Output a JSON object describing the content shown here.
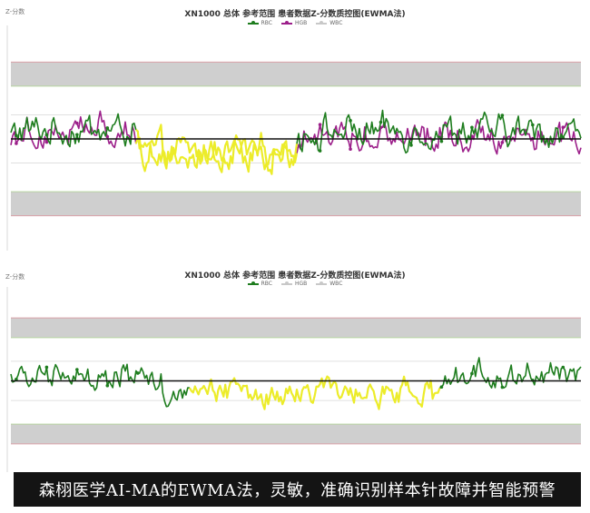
{
  "caption": "森栩医学AI-MA的EWMA法，灵敏，准确识别样本针故障并智能预警",
  "colors": {
    "RBC": "#1e7d1e",
    "HGB": "#9c1f8a",
    "WBC": "#c8c8c8",
    "inactive": "#c8c8c8",
    "highlight": "#ecec2a",
    "band": "#cfcfcf",
    "band_border": "#b8d4a0",
    "limit_line": "#d9a0a8",
    "center_line": "#111111"
  },
  "chart_data": [
    {
      "type": "line",
      "title": "XN1000 总体  参考范围 患者数据Z-分数质控图(EWMA法)",
      "ylabel": "Z-分数",
      "ylim": [
        -4.5,
        4.5
      ],
      "control_bands": [
        [
          2.2,
          3.2
        ],
        [
          -3.2,
          -2.2
        ]
      ],
      "reference_lines": [
        1.0,
        -1.0
      ],
      "center_line": 0,
      "legend": [
        "RBC",
        "HGB",
        "WBC"
      ],
      "legend_active": [
        true,
        true,
        false
      ],
      "n_points": 320,
      "segments": [
        {
          "from": 0,
          "to": 70,
          "state": "normal",
          "mean": 0.35
        },
        {
          "from": 70,
          "to": 145,
          "state": "needle-fault",
          "mean": -0.55
        },
        {
          "from": 145,
          "to": 160,
          "state": "fault-highlight",
          "mean": -0.5
        },
        {
          "from": 160,
          "to": 320,
          "state": "normal",
          "mean": 0.3
        }
      ],
      "series": [
        {
          "name": "RBC",
          "fault_mean": -0.55,
          "recovered_mean": 0.3
        },
        {
          "name": "HGB",
          "fault_mean": -0.55,
          "recovered_mean": 0.2
        }
      ]
    },
    {
      "type": "line",
      "title": "XN1000 总体  参考范围 患者数据Z-分数质控图(EWMA法)",
      "ylabel": "Z-分数",
      "ylim": [
        -4.5,
        4.5
      ],
      "control_bands": [
        [
          2.2,
          3.2
        ],
        [
          -3.2,
          -2.2
        ]
      ],
      "reference_lines": [
        1.0,
        -1.0
      ],
      "center_line": 0,
      "legend": [
        "RBC",
        "HGB",
        "WBC"
      ],
      "legend_active": [
        true,
        false,
        false
      ],
      "n_points": 320,
      "segments": [
        {
          "from": 0,
          "to": 85,
          "state": "normal",
          "mean": 0.25
        },
        {
          "from": 85,
          "to": 100,
          "state": "needle-fault",
          "mean": -0.6
        },
        {
          "from": 100,
          "to": 240,
          "state": "fault-highlight",
          "mean": -0.45
        },
        {
          "from": 240,
          "to": 320,
          "state": "normal",
          "mean": 0.25
        }
      ],
      "series": [
        {
          "name": "RBC",
          "fault_mean": -0.6,
          "recovered_mean": 0.25
        }
      ]
    }
  ]
}
